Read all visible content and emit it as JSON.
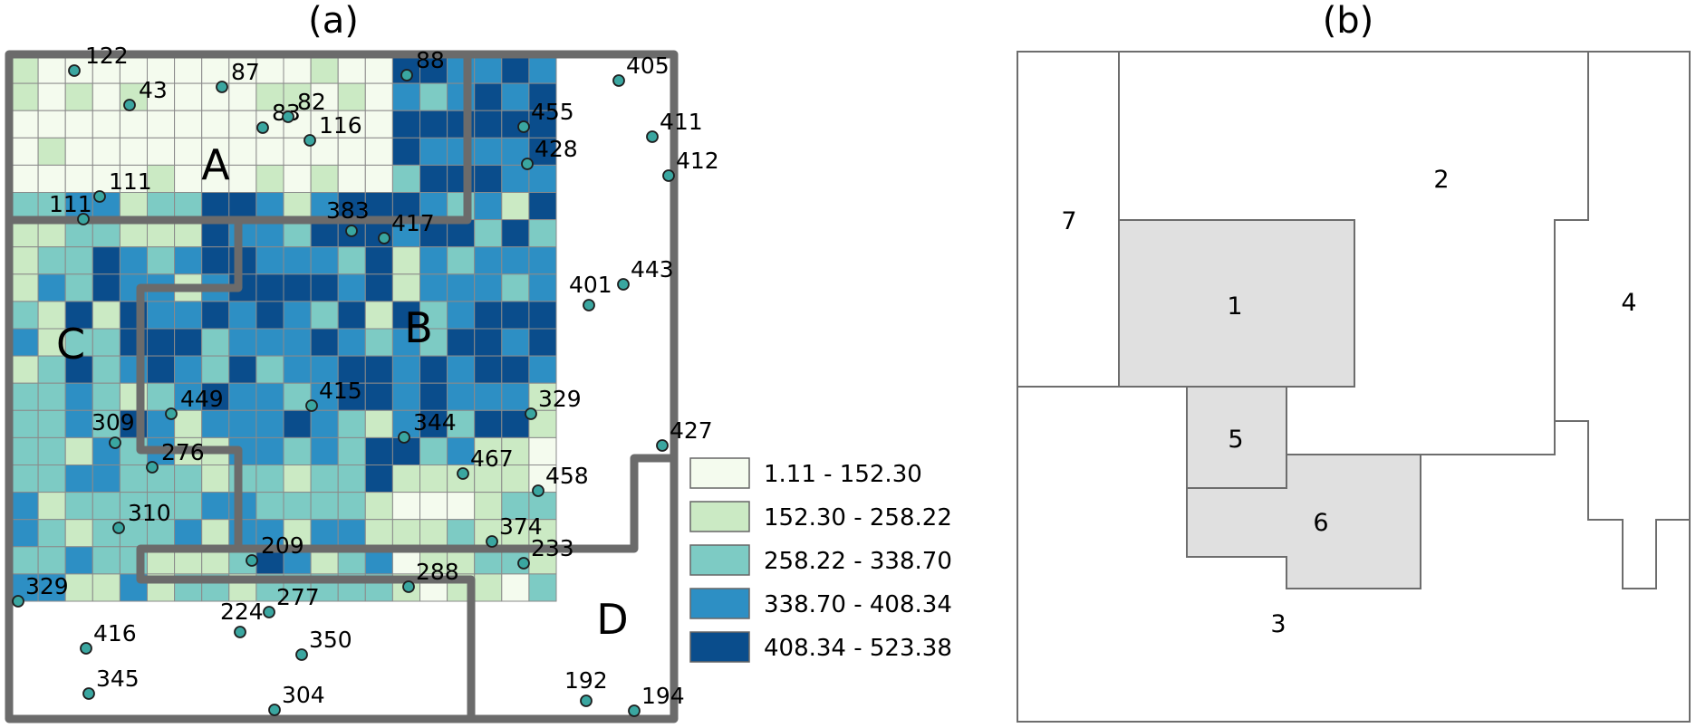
{
  "panels": {
    "a": {
      "label": "(a)"
    },
    "b": {
      "label": "(b)"
    }
  },
  "map_a": {
    "zone_labels": [
      "A",
      "B",
      "C",
      "D"
    ],
    "legend": [
      {
        "label": "1.11 - 152.30",
        "color": "#f4fbee"
      },
      {
        "label": "152.30 - 258.22",
        "color": "#cbeac4"
      },
      {
        "label": "258.22 - 338.70",
        "color": "#7dcbc4"
      },
      {
        "label": "338.70 - 408.34",
        "color": "#2d8fc4"
      },
      {
        "label": "408.34 - 523.38",
        "color": "#0a4d8c"
      }
    ],
    "sample_points": [
      "122",
      "43",
      "87",
      "88",
      "83",
      "82",
      "116",
      "111",
      "111",
      "383",
      "417",
      "405",
      "455",
      "411",
      "428",
      "412",
      "443",
      "401",
      "449",
      "415",
      "309",
      "276",
      "344",
      "329",
      "427",
      "467",
      "458",
      "310",
      "374",
      "209",
      "233",
      "288",
      "329",
      "224",
      "277",
      "416",
      "350",
      "345",
      "304",
      "192",
      "194"
    ]
  },
  "map_b": {
    "regions": [
      "1",
      "2",
      "3",
      "4",
      "5",
      "6",
      "7"
    ]
  }
}
